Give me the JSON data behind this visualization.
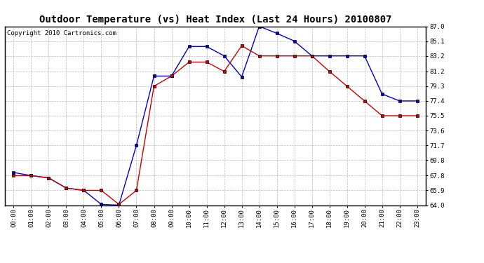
{
  "title": "Outdoor Temperature (vs) Heat Index (Last 24 Hours) 20100807",
  "copyright": "Copyright 2010 Cartronics.com",
  "x_labels": [
    "00:00",
    "01:00",
    "02:00",
    "03:00",
    "04:00",
    "05:00",
    "06:00",
    "07:00",
    "08:00",
    "09:00",
    "10:00",
    "11:00",
    "12:00",
    "13:00",
    "14:00",
    "15:00",
    "16:00",
    "17:00",
    "18:00",
    "19:00",
    "20:00",
    "21:00",
    "22:00",
    "23:00"
  ],
  "blue_data": [
    68.2,
    67.8,
    67.5,
    66.2,
    65.9,
    64.1,
    64.0,
    71.7,
    80.6,
    80.6,
    84.4,
    84.4,
    83.2,
    80.5,
    87.0,
    86.1,
    85.1,
    83.2,
    83.2,
    83.2,
    83.2,
    78.3,
    77.4,
    77.4
  ],
  "red_data": [
    67.8,
    67.8,
    67.5,
    66.2,
    65.9,
    65.9,
    64.1,
    65.9,
    79.3,
    80.6,
    82.4,
    82.4,
    81.2,
    84.5,
    83.2,
    83.2,
    83.2,
    83.2,
    81.2,
    79.3,
    77.4,
    75.5,
    75.5,
    75.5
  ],
  "blue_color": "#0000cc",
  "red_color": "#cc0000",
  "ylim_min": 64.0,
  "ylim_max": 87.0,
  "yticks": [
    64.0,
    65.9,
    67.8,
    69.8,
    71.7,
    73.6,
    75.5,
    77.4,
    79.3,
    81.2,
    83.2,
    85.1,
    87.0
  ],
  "background_color": "#ffffff",
  "plot_bg_color": "#ffffff",
  "grid_color": "#aaaaaa",
  "title_fontsize": 10,
  "copyright_fontsize": 6.5,
  "tick_fontsize": 6.5
}
